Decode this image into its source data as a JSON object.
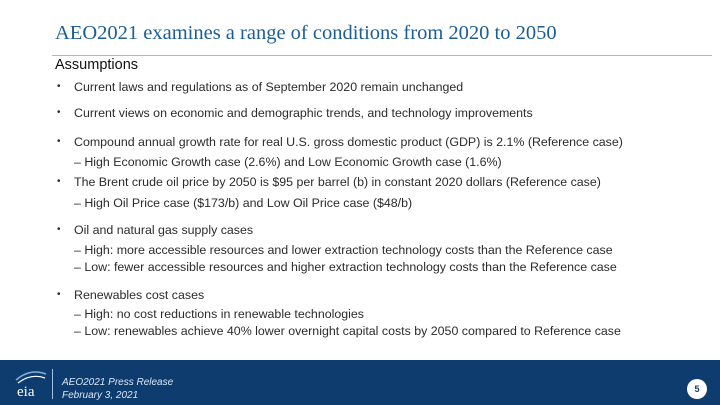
{
  "slide": {
    "title": "AEO2021 examines a range of conditions from 2020 to 2050",
    "subtitle": "Assumptions"
  },
  "bullets": {
    "b1": {
      "text": "Current laws and regulations as of September 2020 remain unchanged"
    },
    "b2": {
      "text": "Current views on economic and demographic trends, and technology improvements"
    },
    "b3": {
      "text": "Compound annual growth rate for real U.S. gross domestic product (GDP) is 2.1% (Reference case)",
      "sub": [
        "– High Economic Growth case (2.6%) and Low Economic Growth case (1.6%)"
      ]
    },
    "b4": {
      "text": "The Brent crude oil price by 2050 is $95 per barrel (b) in constant 2020 dollars (Reference case)",
      "sub": [
        "–  High Oil Price case ($173/b) and Low Oil Price case ($48/b)"
      ]
    },
    "b5": {
      "text": "Oil and natural gas supply cases",
      "sub": [
        "– High: more accessible resources and lower extraction technology costs than the Reference case",
        "– Low: fewer accessible resources and higher extraction technology costs than the Reference case"
      ]
    },
    "b6": {
      "text": "Renewables cost cases",
      "sub": [
        "– High: no cost reductions in renewable technologies",
        "– Low: renewables achieve 40% lower overnight capital costs by 2050 compared to Reference case"
      ]
    },
    "bullet_symbol": "•"
  },
  "footer": {
    "logo_text": "eia",
    "release_line1": "AEO2021 Press Release",
    "release_line2": "February 3, 2021",
    "page_number": "5"
  },
  "colors": {
    "title": "#1b5e97",
    "footer_bg": "#0f3c6e",
    "text": "#2b2b2b"
  }
}
